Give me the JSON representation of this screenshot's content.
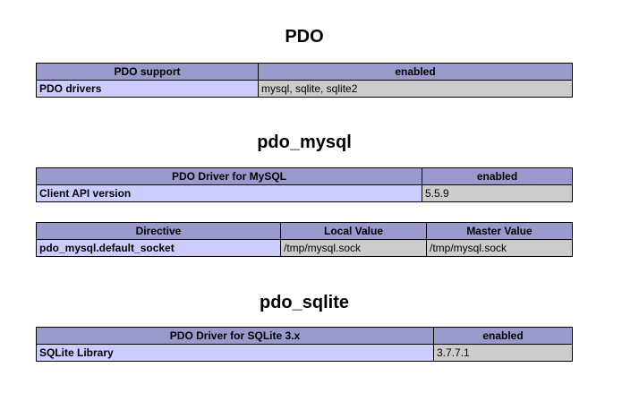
{
  "sections": [
    {
      "title": "PDO",
      "tables": [
        {
          "header": [
            "PDO support",
            "enabled"
          ],
          "rows": [
            [
              "PDO drivers",
              "mysql, sqlite, sqlite2"
            ]
          ]
        }
      ]
    },
    {
      "title": "pdo_mysql",
      "tables": [
        {
          "header": [
            "PDO Driver for MySQL",
            "enabled"
          ],
          "rows": [
            [
              "Client API version",
              "5.5.9"
            ]
          ]
        },
        {
          "header": [
            "Directive",
            "Local Value",
            "Master Value"
          ],
          "rows": [
            [
              "pdo_mysql.default_socket",
              "/tmp/mysql.sock",
              "/tmp/mysql.sock"
            ]
          ]
        }
      ]
    },
    {
      "title": "pdo_sqlite",
      "tables": [
        {
          "header": [
            "PDO Driver for SQLite 3.x",
            "enabled"
          ],
          "rows": [
            [
              "SQLite Library",
              "3.7.7.1"
            ]
          ]
        }
      ]
    }
  ]
}
